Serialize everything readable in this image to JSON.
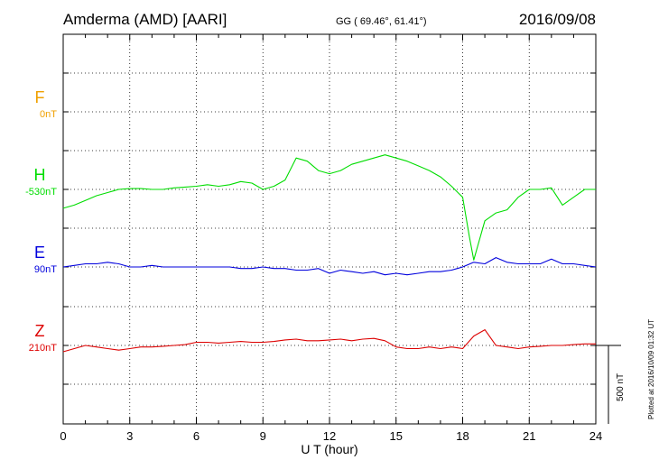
{
  "header": {
    "station": "Amderma (AMD)  [AARI]",
    "coords": "GG ( 69.46°,  61.41°)",
    "date": "2016/09/08"
  },
  "plotted_note": "Plotted at 2016/10/09 01:32 UT",
  "scale_label": "500 nT",
  "colors": {
    "F": "#f0a000",
    "H": "#00dd00",
    "E": "#0000dd",
    "Z": "#dd0000"
  },
  "chart_data": {
    "type": "line",
    "xlabel": "U T (hour)",
    "xlim": [
      0,
      24
    ],
    "x_ticks": [
      0,
      3,
      6,
      9,
      12,
      15,
      18,
      21,
      24
    ],
    "x_tick_labels": [
      "0",
      "3",
      "6",
      "9",
      "12",
      "15",
      "18",
      "21",
      "24"
    ],
    "grid": true,
    "scale_bar_nT": 500,
    "channels": [
      {
        "name": "F",
        "offset_label": "0nT",
        "values": []
      },
      {
        "name": "H",
        "offset_label": "-530nT",
        "x": [
          0,
          0.5,
          1,
          1.5,
          2,
          2.5,
          3,
          3.5,
          4,
          4.5,
          5,
          5.5,
          6,
          6.5,
          7,
          7.5,
          8,
          8.5,
          9,
          9.5,
          10,
          10.5,
          11,
          11.5,
          12,
          12.5,
          13,
          13.5,
          14,
          14.5,
          15,
          15.5,
          16,
          16.5,
          17,
          17.5,
          18,
          18.3,
          18.5,
          18.7,
          19,
          19.5,
          20,
          20.5,
          21,
          21.5,
          22,
          22.5,
          23,
          23.5,
          24
        ],
        "values": [
          -120,
          -100,
          -70,
          -40,
          -20,
          0,
          5,
          5,
          0,
          0,
          10,
          15,
          20,
          30,
          20,
          30,
          50,
          40,
          0,
          20,
          60,
          200,
          180,
          120,
          100,
          120,
          160,
          180,
          200,
          220,
          200,
          180,
          150,
          120,
          80,
          20,
          -50,
          -300,
          -450,
          -350,
          -200,
          -150,
          -130,
          -50,
          0,
          0,
          10,
          -100,
          -50,
          0,
          0
        ]
      },
      {
        "name": "E",
        "offset_label": "90nT",
        "x": [
          0,
          0.5,
          1,
          1.5,
          2,
          2.5,
          3,
          3.5,
          4,
          4.5,
          5,
          5.5,
          6,
          6.5,
          7,
          7.5,
          8,
          8.5,
          9,
          9.5,
          10,
          10.5,
          11,
          11.5,
          12,
          12.5,
          13,
          13.5,
          14,
          14.5,
          15,
          15.5,
          16,
          16.5,
          17,
          17.5,
          18,
          18.5,
          19,
          19.5,
          20,
          20.5,
          21,
          21.5,
          22,
          22.5,
          23,
          23.5,
          24
        ],
        "values": [
          0,
          10,
          20,
          20,
          30,
          20,
          0,
          0,
          10,
          0,
          0,
          0,
          0,
          0,
          0,
          0,
          -10,
          -10,
          0,
          -10,
          -10,
          -20,
          -20,
          -10,
          -40,
          -20,
          -30,
          -40,
          -30,
          -50,
          -40,
          -50,
          -40,
          -30,
          -30,
          -20,
          0,
          30,
          20,
          60,
          30,
          20,
          20,
          20,
          50,
          20,
          20,
          10,
          0
        ]
      },
      {
        "name": "Z",
        "offset_label": "210nT",
        "x": [
          0,
          0.5,
          1,
          1.5,
          2,
          2.5,
          3,
          3.5,
          4,
          4.5,
          5,
          5.5,
          6,
          6.5,
          7,
          7.5,
          8,
          8.5,
          9,
          9.5,
          10,
          10.5,
          11,
          11.5,
          12,
          12.5,
          13,
          13.5,
          14,
          14.5,
          15,
          15.5,
          16,
          16.5,
          17,
          17.5,
          18,
          18.5,
          19,
          19.5,
          20,
          20.5,
          21,
          21.5,
          22,
          22.5,
          23,
          23.5,
          24
        ],
        "values": [
          -40,
          -20,
          0,
          -10,
          -20,
          -30,
          -20,
          -10,
          -10,
          -5,
          0,
          5,
          20,
          20,
          15,
          20,
          25,
          20,
          20,
          25,
          35,
          40,
          30,
          30,
          35,
          40,
          30,
          40,
          45,
          30,
          -10,
          -20,
          -20,
          -10,
          -20,
          -10,
          -20,
          60,
          100,
          0,
          -10,
          -20,
          -10,
          -5,
          0,
          0,
          5,
          10,
          10
        ]
      }
    ]
  }
}
